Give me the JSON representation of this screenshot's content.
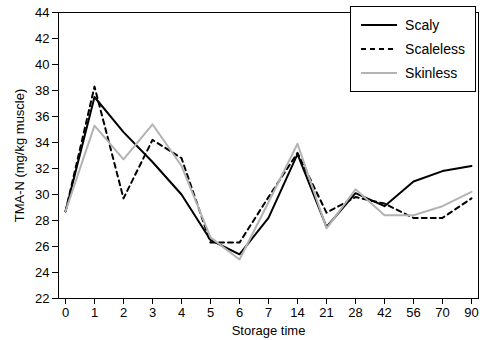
{
  "chart_data": {
    "type": "line",
    "x_label": "Storage time",
    "y_label": "TMA-N (mg/kg muscle)",
    "categories": [
      "0",
      "1",
      "2",
      "3",
      "4",
      "5",
      "6",
      "7",
      "14",
      "21",
      "28",
      "42",
      "56",
      "70",
      "90"
    ],
    "ylim": [
      22,
      44
    ],
    "yticks": [
      22,
      24,
      26,
      28,
      30,
      32,
      34,
      36,
      38,
      40,
      42,
      44
    ],
    "legend": "top-right",
    "series": [
      {
        "name": "Scaly",
        "color": "#000000",
        "line_style": "solid",
        "values": [
          28.7,
          37.5,
          34.8,
          32.5,
          30.0,
          26.5,
          25.4,
          28.2,
          33.1,
          27.5,
          30.1,
          29.1,
          31.0,
          31.8,
          32.2
        ]
      },
      {
        "name": "Scaleless",
        "color": "#000000",
        "line_style": "dashed",
        "values": [
          28.7,
          38.3,
          29.7,
          34.2,
          32.8,
          26.3,
          26.3,
          29.8,
          33.2,
          28.6,
          29.8,
          29.3,
          28.2,
          28.2,
          29.7
        ]
      },
      {
        "name": "Skinless",
        "color": "#b3b3b3",
        "line_style": "solid",
        "values": [
          28.7,
          35.3,
          32.7,
          35.4,
          32.2,
          26.7,
          25.0,
          29.4,
          33.9,
          27.4,
          30.4,
          28.4,
          28.4,
          29.1,
          30.2
        ]
      }
    ]
  }
}
